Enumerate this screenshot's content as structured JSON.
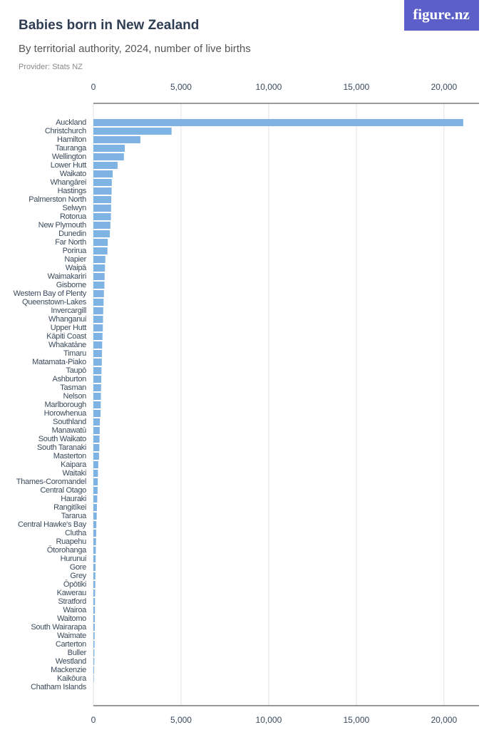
{
  "logo": "figure.nz",
  "chart_data": {
    "type": "bar",
    "orientation": "horizontal",
    "title": "Babies born in New Zealand",
    "subtitle": "By territorial authority, 2024, number of live births",
    "provider": "Provider: Stats NZ",
    "color": "#7eb3e3",
    "grid": true,
    "xlim": [
      0,
      22000
    ],
    "xticks": [
      0,
      {
        "value": 5000,
        "label": "5,000"
      },
      {
        "value": 10000,
        "label": "10,000"
      },
      {
        "value": 15000,
        "label": "15,000"
      },
      {
        "value": 20000,
        "label": "20,000"
      }
    ],
    "categories": [
      "Auckland",
      "Christchurch",
      "Hamilton",
      "Tauranga",
      "Wellington",
      "Lower Hutt",
      "Waikato",
      "Whangārei",
      "Hastings",
      "Palmerston North",
      "Selwyn",
      "Rotorua",
      "New Plymouth",
      "Dunedin",
      "Far North",
      "Porirua",
      "Napier",
      "Waipā",
      "Waimakariri",
      "Gisborne",
      "Western Bay of Plenty",
      "Queenstown-Lakes",
      "Invercargill",
      "Whanganui",
      "Upper Hutt",
      "Kāpiti Coast",
      "Whakatāne",
      "Timaru",
      "Matamata-Piako",
      "Taupō",
      "Ashburton",
      "Tasman",
      "Nelson",
      "Marlborough",
      "Horowhenua",
      "Southland",
      "Manawatū",
      "South Waikato",
      "South Taranaki",
      "Masterton",
      "Kaipara",
      "Waitaki",
      "Thames-Coromandel",
      "Central Otago",
      "Hauraki",
      "Rangitīkei",
      "Tararua",
      "Central Hawke's Bay",
      "Clutha",
      "Ruapehu",
      "Ōtorohanga",
      "Hurunui",
      "Gore",
      "Grey",
      "Ōpōtiki",
      "Kawerau",
      "Stratford",
      "Wairoa",
      "Waitomo",
      "South Wairarapa",
      "Waimate",
      "Carterton",
      "Buller",
      "Westland",
      "Mackenzie",
      "Kaikōura",
      "Chatham Islands"
    ],
    "values": [
      21100,
      4460,
      2680,
      1790,
      1740,
      1380,
      1100,
      1050,
      1040,
      1020,
      1010,
      1000,
      970,
      940,
      820,
      800,
      680,
      660,
      640,
      630,
      600,
      580,
      560,
      550,
      540,
      520,
      500,
      490,
      480,
      460,
      450,
      440,
      430,
      420,
      410,
      370,
      360,
      350,
      340,
      320,
      280,
      260,
      250,
      240,
      220,
      200,
      190,
      170,
      160,
      150,
      140,
      130,
      120,
      115,
      110,
      100,
      95,
      90,
      85,
      80,
      70,
      65,
      55,
      50,
      40,
      25,
      5
    ]
  }
}
